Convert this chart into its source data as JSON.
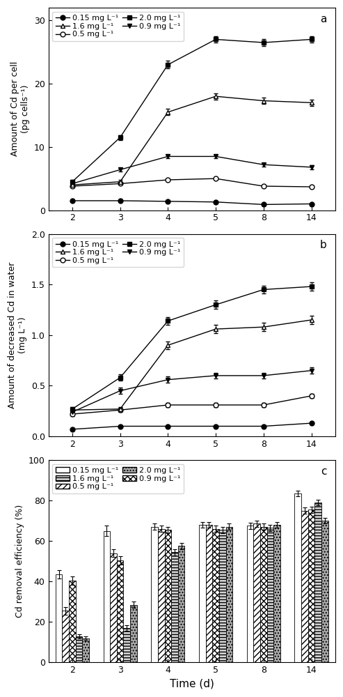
{
  "time_points": [
    2,
    3,
    4,
    5,
    8,
    14
  ],
  "time_labels": [
    "2",
    "3",
    "4",
    "5",
    "8",
    "14"
  ],
  "panel_a": {
    "title": "a",
    "ylabel": "Amount of Cd per cell\n(pg cells⁻¹)",
    "ylim": [
      0,
      32
    ],
    "yticks": [
      0,
      10,
      20,
      30
    ],
    "series": {
      "0.15": {
        "values": [
          1.5,
          1.5,
          1.4,
          1.3,
          0.9,
          1.0
        ],
        "err": [
          0.15,
          0.1,
          0.1,
          0.1,
          0.1,
          0.1
        ]
      },
      "0.5": {
        "values": [
          3.8,
          4.2,
          4.8,
          5.0,
          3.8,
          3.7
        ],
        "err": [
          0.2,
          0.2,
          0.2,
          0.2,
          0.2,
          0.2
        ]
      },
      "0.9": {
        "values": [
          4.2,
          6.4,
          8.5,
          8.5,
          7.2,
          6.8
        ],
        "err": [
          0.3,
          0.3,
          0.3,
          0.3,
          0.3,
          0.3
        ]
      },
      "1.6": {
        "values": [
          4.0,
          4.5,
          15.5,
          18.0,
          17.3,
          17.0
        ],
        "err": [
          0.3,
          0.3,
          0.5,
          0.5,
          0.5,
          0.5
        ]
      },
      "2.0": {
        "values": [
          4.5,
          11.5,
          23.0,
          27.0,
          26.5,
          27.0
        ],
        "err": [
          0.3,
          0.4,
          0.6,
          0.5,
          0.5,
          0.5
        ]
      }
    }
  },
  "panel_b": {
    "title": "b",
    "ylabel": "Amount of decreased Cd in water\n(mg L⁻¹)",
    "ylim": [
      0.0,
      2.0
    ],
    "yticks": [
      0.0,
      0.5,
      1.0,
      1.5,
      2.0
    ],
    "series": {
      "0.15": {
        "values": [
          0.07,
          0.1,
          0.1,
          0.1,
          0.1,
          0.13
        ],
        "err": [
          0.01,
          0.01,
          0.01,
          0.01,
          0.01,
          0.01
        ]
      },
      "0.5": {
        "values": [
          0.22,
          0.26,
          0.31,
          0.31,
          0.31,
          0.4
        ],
        "err": [
          0.02,
          0.02,
          0.02,
          0.02,
          0.02,
          0.02
        ]
      },
      "0.9": {
        "values": [
          0.24,
          0.45,
          0.56,
          0.6,
          0.6,
          0.65
        ],
        "err": [
          0.02,
          0.03,
          0.03,
          0.03,
          0.03,
          0.03
        ]
      },
      "1.6": {
        "values": [
          0.26,
          0.27,
          0.9,
          1.06,
          1.08,
          1.15
        ],
        "err": [
          0.02,
          0.02,
          0.04,
          0.04,
          0.04,
          0.04
        ]
      },
      "2.0": {
        "values": [
          0.27,
          0.58,
          1.14,
          1.3,
          1.45,
          1.48
        ],
        "err": [
          0.02,
          0.03,
          0.04,
          0.04,
          0.04,
          0.04
        ]
      }
    }
  },
  "panel_c": {
    "title": "c",
    "ylabel": "Cd removal efficiency (%)",
    "xlabel": "Time (d)",
    "ylim": [
      0,
      100
    ],
    "yticks": [
      0,
      20,
      40,
      60,
      80,
      100
    ],
    "bar_width": 0.14,
    "series": {
      "0.15": {
        "values": [
          43.5,
          65.0,
          67.0,
          68.0,
          67.5,
          83.5
        ],
        "err": [
          2.0,
          2.5,
          1.5,
          1.5,
          1.5,
          1.5
        ],
        "hatch": "",
        "facecolor": "white",
        "edgecolor": "black"
      },
      "0.5": {
        "values": [
          25.5,
          54.0,
          66.0,
          68.0,
          68.5,
          75.0
        ],
        "err": [
          2.0,
          2.0,
          1.5,
          1.5,
          1.5,
          1.5
        ],
        "hatch": "////",
        "facecolor": "white",
        "edgecolor": "black"
      },
      "0.9": {
        "values": [
          40.5,
          50.5,
          65.5,
          66.0,
          67.0,
          75.5
        ],
        "err": [
          2.0,
          2.0,
          1.5,
          1.5,
          1.5,
          1.5
        ],
        "hatch": "xxxx",
        "facecolor": "white",
        "edgecolor": "black"
      },
      "1.6": {
        "values": [
          13.0,
          17.0,
          54.5,
          65.5,
          66.5,
          79.0
        ],
        "err": [
          1.0,
          1.5,
          1.5,
          1.5,
          1.5,
          1.5
        ],
        "hatch": "----",
        "facecolor": "lightgray",
        "edgecolor": "black"
      },
      "2.0": {
        "values": [
          12.0,
          28.5,
          57.5,
          67.0,
          68.0,
          70.0
        ],
        "err": [
          1.0,
          1.5,
          1.5,
          1.5,
          1.5,
          1.5
        ],
        "hatch": "....",
        "facecolor": "darkgray",
        "edgecolor": "black"
      }
    }
  },
  "series_keys": [
    "0.15",
    "0.5",
    "0.9",
    "1.6",
    "2.0"
  ]
}
